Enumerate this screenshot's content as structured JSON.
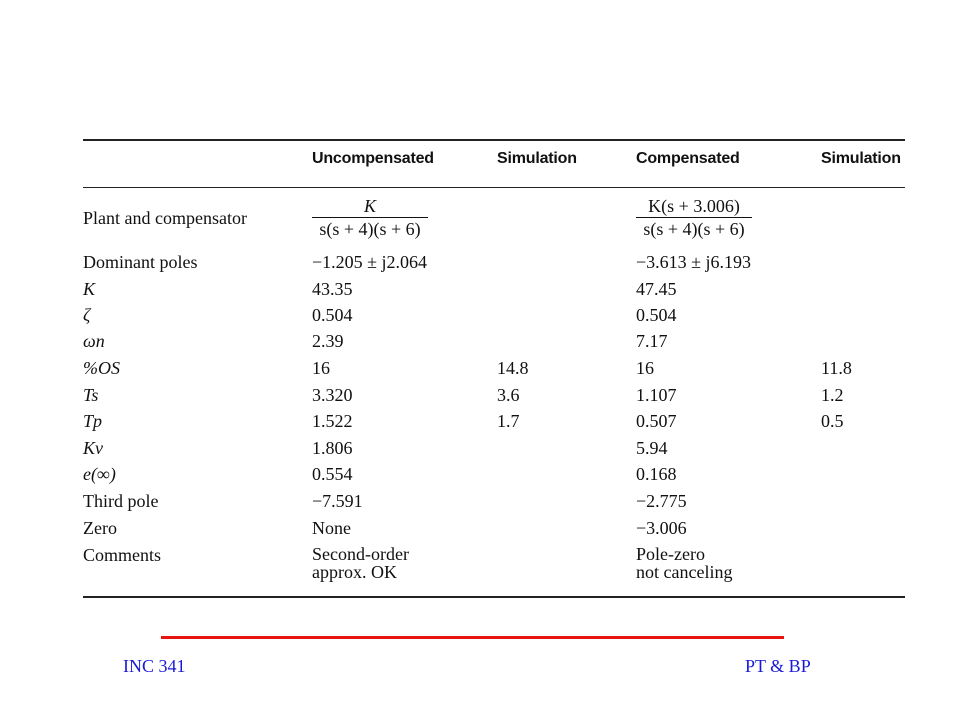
{
  "table": {
    "headers": {
      "uncompensated": "Uncompensated",
      "simulation1": "Simulation",
      "compensated": "Compensated",
      "simulation2": "Simulation"
    },
    "plant": {
      "label": "Plant and compensator",
      "unc_num": "K",
      "unc_den": "s(s + 4)(s + 6)",
      "comp_num": "K(s + 3.006)",
      "comp_den": "s(s + 4)(s + 6)"
    },
    "rows": [
      {
        "label": "Dominant poles",
        "unc": "−1.205 ± j2.064",
        "sim1": "",
        "comp": "−3.613 ± j6.193",
        "sim2": ""
      },
      {
        "label": "K",
        "unc": "43.35",
        "sim1": "",
        "comp": "47.45",
        "sim2": ""
      },
      {
        "label": "ζ",
        "unc": "0.504",
        "sim1": "",
        "comp": "0.504",
        "sim2": ""
      },
      {
        "label": "ωn",
        "unc": "2.39",
        "sim1": "",
        "comp": "7.17",
        "sim2": ""
      },
      {
        "label": "%OS",
        "unc": "16",
        "sim1": "14.8",
        "comp": "16",
        "sim2": "11.8"
      },
      {
        "label": "Ts",
        "unc": "3.320",
        "sim1": "3.6",
        "comp": "1.107",
        "sim2": "1.2"
      },
      {
        "label": "Tp",
        "unc": "1.522",
        "sim1": "1.7",
        "comp": "0.507",
        "sim2": "0.5"
      },
      {
        "label": "Kv",
        "unc": "1.806",
        "sim1": "",
        "comp": "5.94",
        "sim2": ""
      },
      {
        "label": "e(∞)",
        "unc": "0.554",
        "sim1": "",
        "comp": "0.168",
        "sim2": ""
      },
      {
        "label": "Third pole",
        "unc": "−7.591",
        "sim1": "",
        "comp": "−2.775",
        "sim2": ""
      },
      {
        "label": "Zero",
        "unc": "None",
        "sim1": "",
        "comp": "−3.006",
        "sim2": ""
      }
    ],
    "comments": {
      "label": "Comments",
      "unc_line1": "Second-order",
      "unc_line2": "approx. OK",
      "comp_line1": "Pole-zero",
      "comp_line2": "not canceling"
    }
  },
  "footer": {
    "left": "INC 341",
    "right": "PT & BP",
    "line_color": "#e8140f",
    "text_color": "#1a1ad6"
  }
}
